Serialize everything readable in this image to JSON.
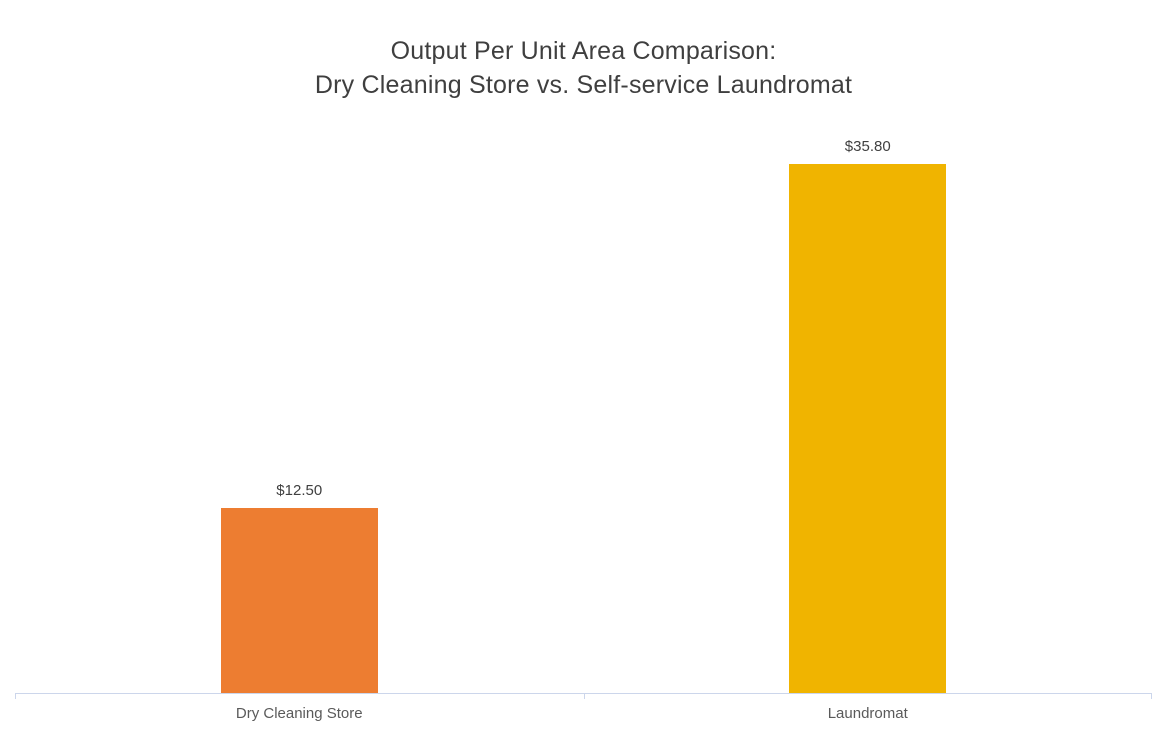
{
  "chart_data": {
    "type": "bar",
    "title_line1": "Output Per Unit Area Comparison:",
    "title_line2": "Dry Cleaning Store vs. Self-service Laundromat",
    "categories": [
      "Dry Cleaning Store",
      "Laundromat"
    ],
    "values": [
      12.5,
      35.8
    ],
    "value_labels": [
      "$12.50",
      "$35.80"
    ],
    "series_name": "Output Per Unit Area",
    "bar_colors": [
      "#ED7D31",
      "#F0B400"
    ],
    "xlabel": "",
    "ylabel": "",
    "ylim": [
      0,
      38
    ],
    "grid": false,
    "legend": "none",
    "y_axis_visible": false,
    "colors": {
      "title": "#3F3F3F",
      "value_label": "#404040",
      "category_label": "#5A5A5A",
      "axis_line": "#CCD6EB",
      "background": "#FFFFFF"
    }
  }
}
